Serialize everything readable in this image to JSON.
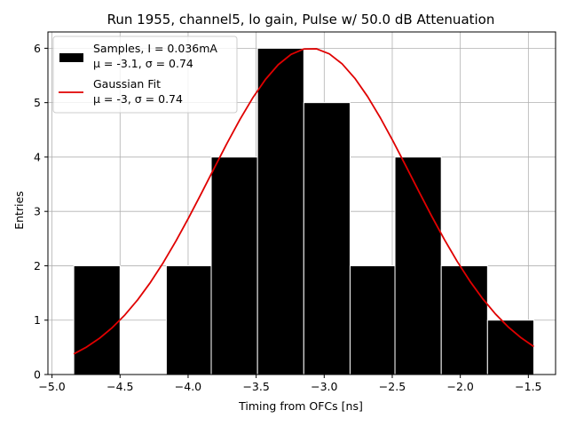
{
  "chart_data": {
    "type": "bar",
    "title": "Run 1955, channel5, lo gain, Pulse w/ 50.0 dB Attenuation",
    "xlabel": "Timing from OFCs [ns]",
    "ylabel": "Entries",
    "xlim": [
      -5.03,
      -1.3
    ],
    "ylim": [
      0,
      6.3
    ],
    "xticks": [
      -5.0,
      -4.5,
      -4.0,
      -3.5,
      -3.0,
      -2.5,
      -2.0,
      -1.5
    ],
    "xtick_labels": [
      "−5.0",
      "−4.5",
      "−4.0",
      "−3.5",
      "−3.0",
      "−2.5",
      "−2.0",
      "−1.5"
    ],
    "yticks": [
      0,
      1,
      2,
      3,
      4,
      5,
      6
    ],
    "ytick_labels": [
      "0",
      "1",
      "2",
      "3",
      "4",
      "5",
      "6"
    ],
    "grid": true,
    "legend_position": "top-left",
    "histogram": {
      "name_line1": "Samples, I = 0.036mA",
      "name_line2": "μ = -3.1, σ = 0.74",
      "color": "#000000",
      "edgecolor": "#ffffff",
      "bins": [
        {
          "x0": -4.84,
          "x1": -4.5,
          "count": 2
        },
        {
          "x0": -4.5,
          "x1": -4.16,
          "count": 0
        },
        {
          "x0": -4.16,
          "x1": -3.83,
          "count": 2
        },
        {
          "x0": -3.83,
          "x1": -3.49,
          "count": 4
        },
        {
          "x0": -3.49,
          "x1": -3.15,
          "count": 6
        },
        {
          "x0": -3.15,
          "x1": -2.81,
          "count": 5
        },
        {
          "x0": -2.81,
          "x1": -2.48,
          "count": 2
        },
        {
          "x0": -2.48,
          "x1": -2.14,
          "count": 4
        },
        {
          "x0": -2.14,
          "x1": -1.8,
          "count": 2
        },
        {
          "x0": -1.8,
          "x1": -1.46,
          "count": 1
        }
      ]
    },
    "fit": {
      "name_line1": "Gaussian Fit",
      "name_line2": "μ = -3, σ = 0.74",
      "color": "#e00000",
      "mu": -3.1,
      "sigma": 0.74,
      "amplitude": 6.0,
      "x_range": [
        -4.84,
        -1.46
      ]
    }
  }
}
